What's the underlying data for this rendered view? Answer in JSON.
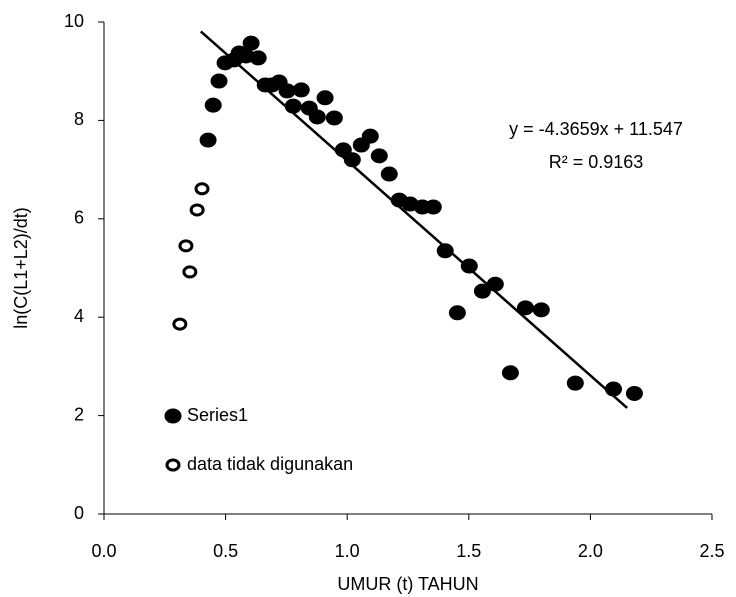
{
  "chart_data": {
    "type": "scatter",
    "x_label": "UMUR (t) TAHUN",
    "y_label": "ln(C(L1+L2)/dt)",
    "xlim": [
      0,
      2.5
    ],
    "ylim": [
      0,
      10
    ],
    "xticks": [
      {
        "value": 0,
        "label": "0.0"
      },
      {
        "value": 0.5,
        "label": "0.5"
      },
      {
        "value": 1,
        "label": "1.0"
      },
      {
        "value": 1.5,
        "label": "1.5"
      },
      {
        "value": 2,
        "label": "2.0"
      },
      {
        "value": 2.5,
        "label": "2.5"
      }
    ],
    "yticks": [
      0,
      2,
      4,
      6,
      8,
      10
    ],
    "grid": false,
    "legend": "lower-left",
    "series": [
      {
        "name": "Series1",
        "color": "#000000",
        "marker": "filled",
        "x": [
          0.428,
          0.449,
          0.473,
          0.498,
          0.535,
          0.556,
          0.584,
          0.605,
          0.634,
          0.663,
          0.691,
          0.72,
          0.753,
          0.778,
          0.811,
          0.844,
          0.877,
          0.909,
          0.947,
          0.984,
          1.021,
          1.058,
          1.095,
          1.132,
          1.173,
          1.214,
          1.259,
          1.309,
          1.354,
          1.403,
          1.453,
          1.502,
          1.556,
          1.609,
          1.671,
          1.733,
          1.798,
          1.938,
          2.095,
          2.181
        ],
        "values": [
          7.6,
          8.31,
          8.8,
          9.17,
          9.23,
          9.37,
          9.31,
          9.57,
          9.27,
          8.72,
          8.72,
          8.78,
          8.6,
          8.29,
          8.62,
          8.25,
          8.07,
          8.46,
          8.05,
          7.4,
          7.2,
          7.5,
          7.68,
          7.28,
          6.91,
          6.38,
          6.3,
          6.24,
          6.24,
          5.35,
          4.09,
          5.04,
          4.53,
          4.67,
          2.87,
          4.19,
          4.15,
          2.66,
          2.54,
          2.45
        ]
      },
      {
        "name": "data tidak digunakan",
        "color": "#000000",
        "marker": "hollow",
        "x": [
          0.312,
          0.353,
          0.337,
          0.383,
          0.403
        ],
        "values": [
          3.86,
          4.92,
          5.45,
          6.18,
          6.61
        ]
      }
    ],
    "trendline": {
      "slope": -4.3659,
      "intercept": 11.547,
      "color": "#000000",
      "equation": "y = -4.3659x + 11.547",
      "r_squared": "R² = 0.9163"
    }
  }
}
